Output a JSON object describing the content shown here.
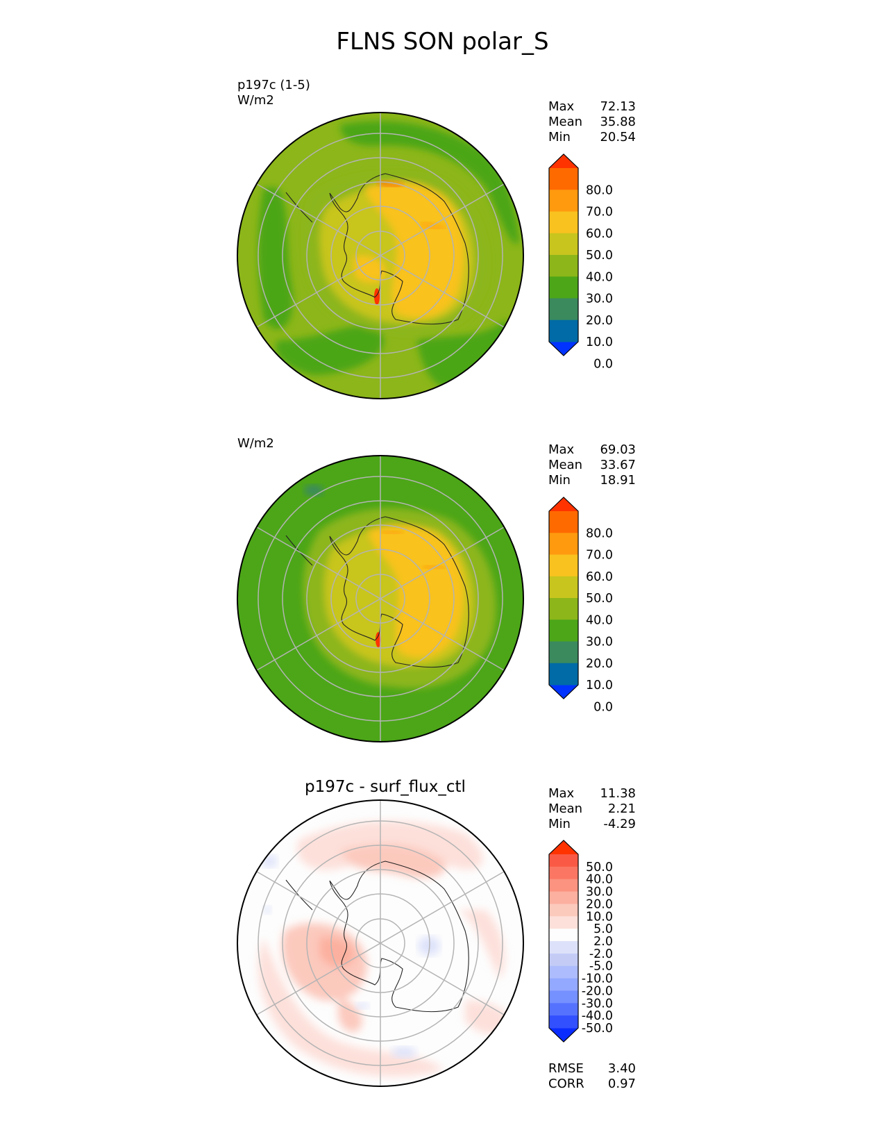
{
  "figure_title": "FLNS SON polar_S",
  "colors": {
    "abs_levels": [
      "#0033ff",
      "#006ba6",
      "#3a8a5e",
      "#4ca618",
      "#8cb61a",
      "#c8c51e",
      "#f9c21f",
      "#ff9a0f",
      "#ff6a00",
      "#ff3300"
    ],
    "diff_levels": [
      "#0a2cff",
      "#3350ff",
      "#5572ff",
      "#7590ff",
      "#93a8ff",
      "#adbcfc",
      "#c4ccf6",
      "#dde2fa",
      "#fdfdfd",
      "#fde0da",
      "#fcc9bd",
      "#fcb09f",
      "#fb9380",
      "#fb7763",
      "#fa5a45",
      "#ff3300"
    ],
    "coastline": "#222222",
    "grid": "#b4b4b4"
  },
  "chart_data": [
    {
      "type": "polar_contour_map",
      "panel": "test",
      "title_lines": [
        "p197c (1-5)",
        "W/m2"
      ],
      "stats": [
        [
          "Max",
          "72.13"
        ],
        [
          "Mean",
          "35.88"
        ],
        [
          "Min",
          "20.54"
        ]
      ],
      "colorbar_ticks": [
        "80.0",
        "70.0",
        "60.0",
        "50.0",
        "40.0",
        "30.0",
        "20.0",
        "10.0",
        "0.0"
      ],
      "levels": [
        0,
        10,
        20,
        30,
        40,
        50,
        60,
        70,
        80
      ],
      "extend": "both"
    },
    {
      "type": "polar_contour_map",
      "panel": "reference",
      "title_lines": [
        "W/m2"
      ],
      "stats": [
        [
          "Max",
          "69.03"
        ],
        [
          "Mean",
          "33.67"
        ],
        [
          "Min",
          "18.91"
        ]
      ],
      "colorbar_ticks": [
        "80.0",
        "70.0",
        "60.0",
        "50.0",
        "40.0",
        "30.0",
        "20.0",
        "10.0",
        "0.0"
      ],
      "levels": [
        0,
        10,
        20,
        30,
        40,
        50,
        60,
        70,
        80
      ],
      "extend": "both"
    },
    {
      "type": "polar_contour_map",
      "panel": "difference",
      "title": "p197c - surf_flux_ctl",
      "stats": [
        [
          "Max",
          "11.38"
        ],
        [
          "Mean",
          "2.21"
        ],
        [
          "Min",
          "-4.29"
        ]
      ],
      "colorbar_ticks": [
        "50.0",
        "40.0",
        "30.0",
        "20.0",
        "10.0",
        "5.0",
        "2.0",
        "-2.0",
        "-5.0",
        "-10.0",
        "-20.0",
        "-30.0",
        "-40.0",
        "-50.0"
      ],
      "levels": [
        -50,
        -40,
        -30,
        -20,
        -10,
        -5,
        -2,
        2,
        5,
        10,
        20,
        30,
        40,
        50
      ],
      "extend": "both",
      "metrics": [
        [
          "RMSE",
          "3.40"
        ],
        [
          "CORR",
          "0.97"
        ]
      ]
    }
  ]
}
